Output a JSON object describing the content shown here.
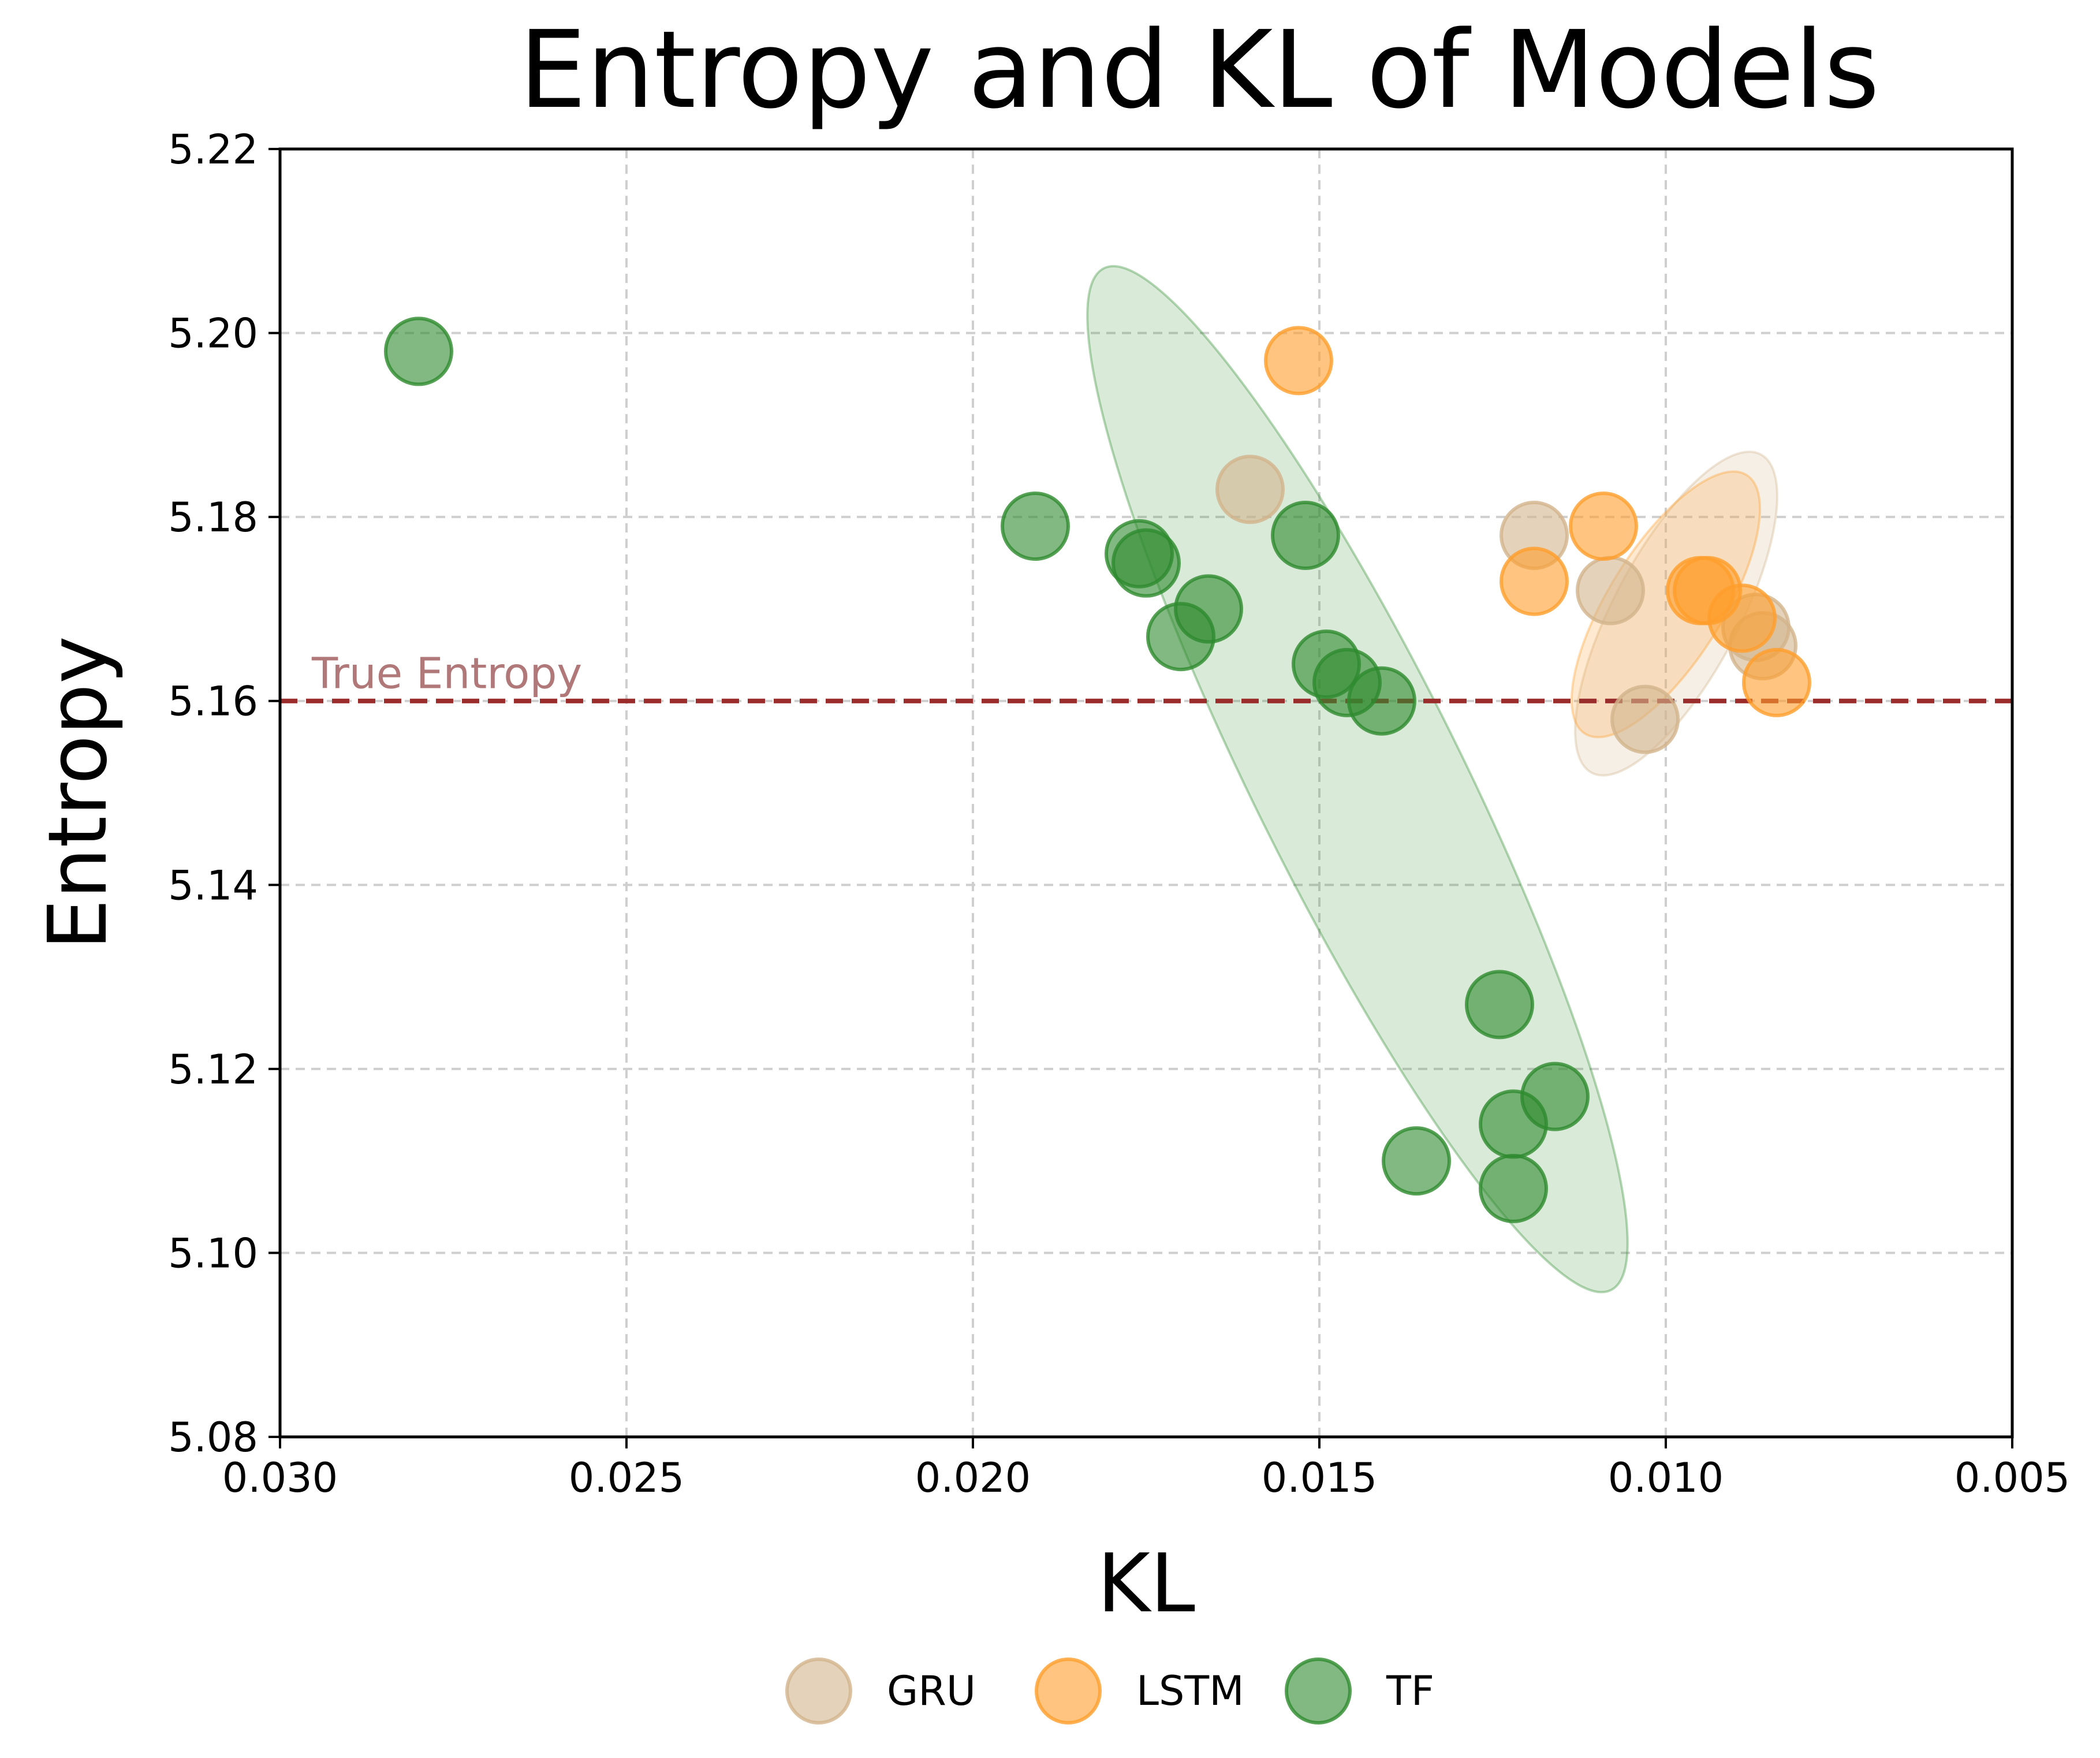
{
  "chart_data": {
    "type": "scatter",
    "title": "Entropy and KL of Models",
    "xlabel": "KL",
    "ylabel": "Entropy",
    "xlim": [
      0.03,
      0.005
    ],
    "x_inverted": true,
    "ylim": [
      5.08,
      5.22
    ],
    "grid": true,
    "legend_position": "bottom-center",
    "x_ticks": [
      0.03,
      0.025,
      0.02,
      0.015,
      0.01,
      0.005
    ],
    "x_tick_labels": [
      "0.030",
      "0.025",
      "0.020",
      "0.015",
      "0.010",
      "0.005"
    ],
    "y_ticks": [
      5.08,
      5.1,
      5.12,
      5.14,
      5.16,
      5.18,
      5.2,
      5.22
    ],
    "y_tick_labels": [
      "5.08",
      "5.10",
      "5.12",
      "5.14",
      "5.16",
      "5.18",
      "5.20",
      "5.22"
    ],
    "reference_line": {
      "label": "True Entropy",
      "y": 5.16,
      "color": "#9b2c2c"
    },
    "series": [
      {
        "name": "GRU",
        "color": "#d2b48c",
        "points": [
          {
            "x": 0.016,
            "y": 5.183
          },
          {
            "x": 0.0119,
            "y": 5.178
          },
          {
            "x": 0.0108,
            "y": 5.172
          },
          {
            "x": 0.0087,
            "y": 5.168
          },
          {
            "x": 0.0086,
            "y": 5.166
          },
          {
            "x": 0.0103,
            "y": 5.158
          }
        ],
        "ellipse": {
          "cx": 0.00985,
          "cy": 5.1695,
          "rx": 0.0026,
          "ry": 0.0068,
          "angle_deg": -62
        }
      },
      {
        "name": "LSTM",
        "color": "#ff9e2c",
        "points": [
          {
            "x": 0.0153,
            "y": 5.197
          },
          {
            "x": 0.0109,
            "y": 5.179
          },
          {
            "x": 0.0119,
            "y": 5.173
          },
          {
            "x": 0.0095,
            "y": 5.172
          },
          {
            "x": 0.0094,
            "y": 5.172
          },
          {
            "x": 0.0089,
            "y": 5.169
          },
          {
            "x": 0.0084,
            "y": 5.162
          }
        ],
        "ellipse": {
          "cx": 0.01,
          "cy": 5.1705,
          "rx": 0.0022,
          "ry": 0.0062,
          "angle_deg": -58
        }
      },
      {
        "name": "TF",
        "color": "#2e8b2e",
        "points": [
          {
            "x": 0.028,
            "y": 5.198
          },
          {
            "x": 0.0191,
            "y": 5.179
          },
          {
            "x": 0.0176,
            "y": 5.176
          },
          {
            "x": 0.0175,
            "y": 5.175
          },
          {
            "x": 0.0152,
            "y": 5.178
          },
          {
            "x": 0.0166,
            "y": 5.17
          },
          {
            "x": 0.017,
            "y": 5.167
          },
          {
            "x": 0.0149,
            "y": 5.164
          },
          {
            "x": 0.0146,
            "y": 5.162
          },
          {
            "x": 0.0141,
            "y": 5.16
          },
          {
            "x": 0.0124,
            "y": 5.127
          },
          {
            "x": 0.0116,
            "y": 5.117
          },
          {
            "x": 0.0122,
            "y": 5.114
          },
          {
            "x": 0.0136,
            "y": 5.11
          },
          {
            "x": 0.0122,
            "y": 5.107
          }
        ],
        "ellipse": {
          "cx": 0.01445,
          "cy": 5.1515,
          "rx": 0.0015,
          "ry": 0.062,
          "angle_deg": -26.4
        }
      }
    ]
  }
}
